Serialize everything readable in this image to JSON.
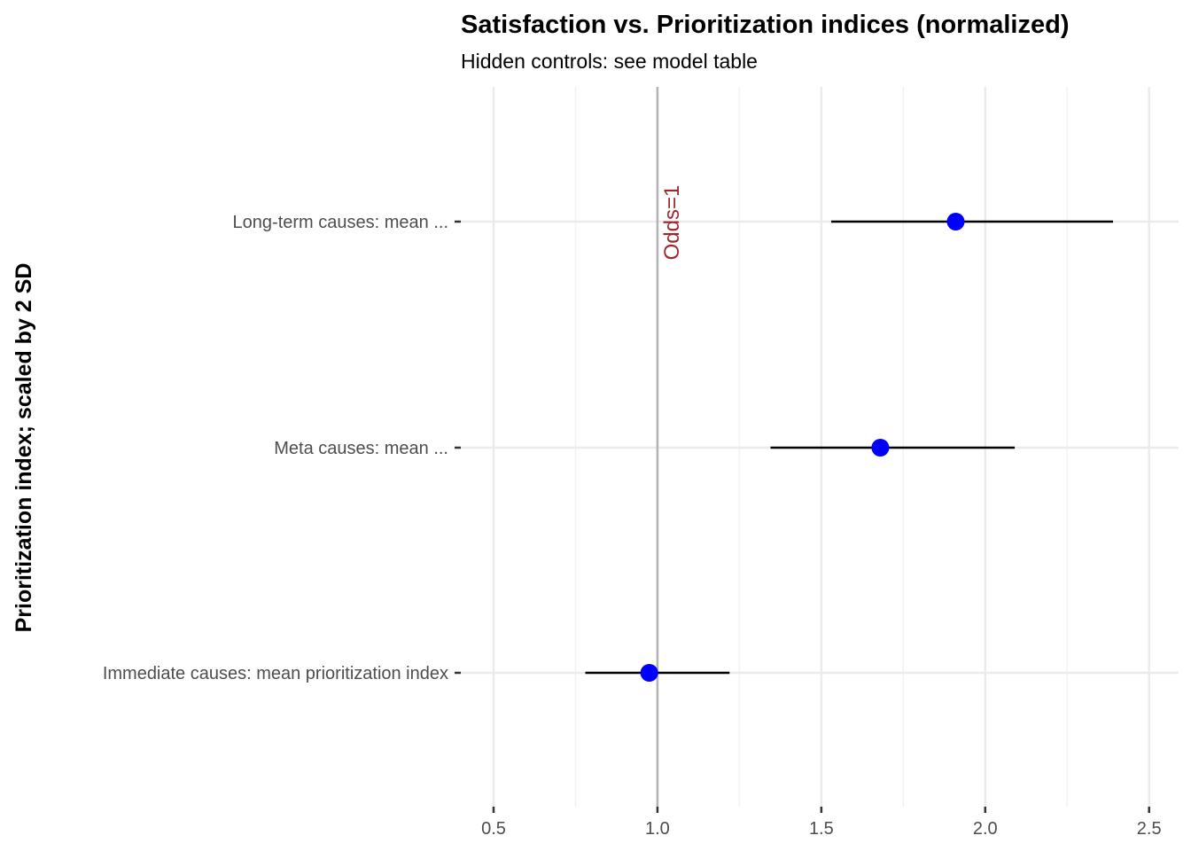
{
  "chart_data": {
    "type": "scatter",
    "title": "Satisfaction vs. Prioritization indices (normalized)",
    "subtitle": "Hidden controls: see model table",
    "xlabel": "",
    "ylabel": "Prioritization index; scaled by 2 SD",
    "xlim": [
      0.4,
      2.59
    ],
    "x_ticks": [
      0.5,
      1.0,
      1.5,
      2.0,
      2.5
    ],
    "x_tick_labels": [
      "0.5",
      "1.0",
      "1.5",
      "2.0",
      "2.5"
    ],
    "categories": [
      "Long-term causes: mean ...",
      "Meta causes: mean ...",
      "Immediate causes: mean prioritization index"
    ],
    "series": [
      {
        "estimates": [
          1.91,
          1.68,
          0.975
        ],
        "lower": [
          1.53,
          1.345,
          0.78
        ],
        "upper": [
          2.39,
          2.09,
          1.22
        ]
      }
    ],
    "reference_line": {
      "x": 1.0,
      "label": "Odds=1"
    },
    "grid": true,
    "legend": "none",
    "colors": {
      "point": "#0000ff",
      "interval": "#000000",
      "reference_line": "#b3b3b3",
      "reference_label": "#a0262c",
      "grid_major": "#ebebeb",
      "grid_minor": "#f2f2f2"
    }
  }
}
